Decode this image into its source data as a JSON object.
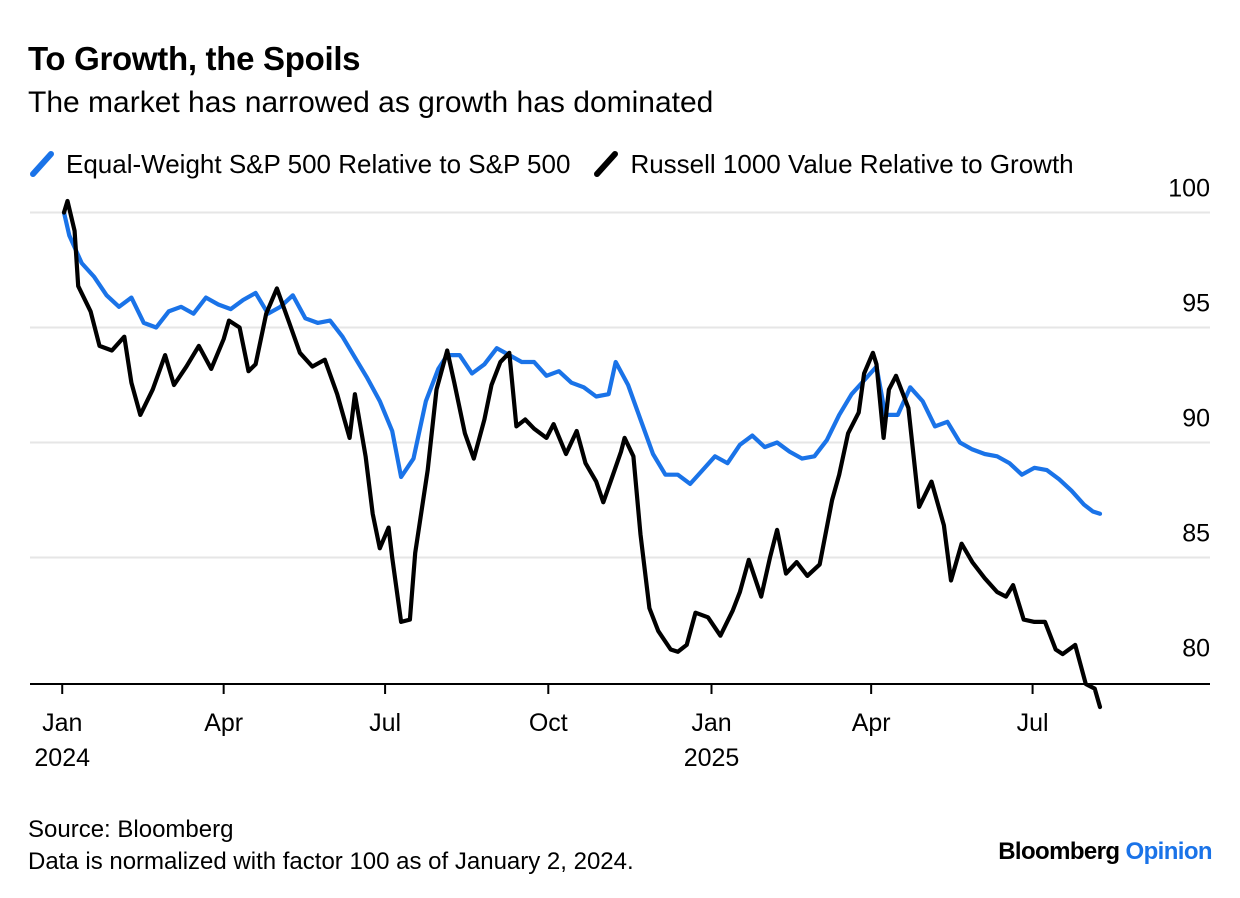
{
  "header": {
    "title": "To Growth, the Spoils",
    "subtitle": "The market has narrowed as growth has dominated"
  },
  "footer": {
    "source": "Source: Bloomberg",
    "note": "Data is normalized with factor 100 as of January 2, 2024.",
    "brand_primary": "Bloomberg",
    "brand_secondary": "Opinion"
  },
  "chart_data": {
    "type": "line",
    "title": "To Growth, the Spoils",
    "subtitle": "The market has narrowed as growth has dominated",
    "xlabel": "",
    "ylabel": "",
    "grid": true,
    "legend_position": "top-left",
    "x_range": [
      "2024-01-02",
      "2025-08-15"
    ],
    "y_range": [
      79.5,
      100.5
    ],
    "y_ticks": [
      80,
      85,
      90,
      95,
      100
    ],
    "y_tick_labels": [
      "80",
      "85",
      "90",
      "95",
      "100"
    ],
    "x_ticks": [
      {
        "date": "2024-01-01",
        "label": "Jan",
        "year": "2024"
      },
      {
        "date": "2024-04-01",
        "label": "Apr",
        "year": ""
      },
      {
        "date": "2024-07-01",
        "label": "Jul",
        "year": ""
      },
      {
        "date": "2024-10-01",
        "label": "Oct",
        "year": ""
      },
      {
        "date": "2025-01-01",
        "label": "Jan",
        "year": "2025"
      },
      {
        "date": "2025-04-01",
        "label": "Apr",
        "year": ""
      },
      {
        "date": "2025-07-01",
        "label": "Jul",
        "year": ""
      }
    ],
    "series": [
      {
        "name": "Equal-Weight S&P 500 Relative to S&P 500",
        "color": "#1a73e8",
        "points": [
          [
            "2024-01-02",
            100.0
          ],
          [
            "2024-01-05",
            99.0
          ],
          [
            "2024-01-12",
            97.8
          ],
          [
            "2024-01-19",
            97.2
          ],
          [
            "2024-01-26",
            96.4
          ],
          [
            "2024-02-02",
            95.9
          ],
          [
            "2024-02-09",
            96.3
          ],
          [
            "2024-02-16",
            95.2
          ],
          [
            "2024-02-23",
            95.0
          ],
          [
            "2024-03-01",
            95.7
          ],
          [
            "2024-03-08",
            95.9
          ],
          [
            "2024-03-15",
            95.6
          ],
          [
            "2024-03-22",
            96.3
          ],
          [
            "2024-03-29",
            96.0
          ],
          [
            "2024-04-05",
            95.8
          ],
          [
            "2024-04-12",
            96.2
          ],
          [
            "2024-04-19",
            96.5
          ],
          [
            "2024-04-26",
            95.6
          ],
          [
            "2024-05-03",
            95.9
          ],
          [
            "2024-05-10",
            96.4
          ],
          [
            "2024-05-17",
            95.4
          ],
          [
            "2024-05-24",
            95.2
          ],
          [
            "2024-05-31",
            95.3
          ],
          [
            "2024-06-07",
            94.6
          ],
          [
            "2024-06-14",
            93.7
          ],
          [
            "2024-06-21",
            92.8
          ],
          [
            "2024-06-28",
            91.8
          ],
          [
            "2024-07-05",
            90.5
          ],
          [
            "2024-07-10",
            88.5
          ],
          [
            "2024-07-17",
            89.3
          ],
          [
            "2024-07-24",
            91.8
          ],
          [
            "2024-07-31",
            93.2
          ],
          [
            "2024-08-05",
            93.8
          ],
          [
            "2024-08-12",
            93.8
          ],
          [
            "2024-08-19",
            93.0
          ],
          [
            "2024-08-26",
            93.4
          ],
          [
            "2024-09-02",
            94.1
          ],
          [
            "2024-09-09",
            93.8
          ],
          [
            "2024-09-16",
            93.5
          ],
          [
            "2024-09-23",
            93.5
          ],
          [
            "2024-09-30",
            92.9
          ],
          [
            "2024-10-07",
            93.1
          ],
          [
            "2024-10-14",
            92.6
          ],
          [
            "2024-10-21",
            92.4
          ],
          [
            "2024-10-28",
            92.0
          ],
          [
            "2024-11-04",
            92.1
          ],
          [
            "2024-11-08",
            93.5
          ],
          [
            "2024-11-15",
            92.5
          ],
          [
            "2024-11-22",
            91.0
          ],
          [
            "2024-11-29",
            89.5
          ],
          [
            "2024-12-06",
            88.6
          ],
          [
            "2024-12-13",
            88.6
          ],
          [
            "2024-12-20",
            88.2
          ],
          [
            "2024-12-27",
            88.8
          ],
          [
            "2025-01-03",
            89.4
          ],
          [
            "2025-01-10",
            89.1
          ],
          [
            "2025-01-17",
            89.9
          ],
          [
            "2025-01-24",
            90.3
          ],
          [
            "2025-01-31",
            89.8
          ],
          [
            "2025-02-07",
            90.0
          ],
          [
            "2025-02-14",
            89.6
          ],
          [
            "2025-02-21",
            89.3
          ],
          [
            "2025-02-28",
            89.4
          ],
          [
            "2025-03-07",
            90.1
          ],
          [
            "2025-03-14",
            91.2
          ],
          [
            "2025-03-21",
            92.1
          ],
          [
            "2025-03-28",
            92.7
          ],
          [
            "2025-04-04",
            93.3
          ],
          [
            "2025-04-09",
            91.2
          ],
          [
            "2025-04-16",
            91.2
          ],
          [
            "2025-04-23",
            92.4
          ],
          [
            "2025-04-30",
            91.8
          ],
          [
            "2025-05-07",
            90.7
          ],
          [
            "2025-05-14",
            90.9
          ],
          [
            "2025-05-21",
            90.0
          ],
          [
            "2025-05-28",
            89.7
          ],
          [
            "2025-06-04",
            89.5
          ],
          [
            "2025-06-11",
            89.4
          ],
          [
            "2025-06-18",
            89.1
          ],
          [
            "2025-06-25",
            88.6
          ],
          [
            "2025-07-02",
            88.9
          ],
          [
            "2025-07-09",
            88.8
          ],
          [
            "2025-07-16",
            88.4
          ],
          [
            "2025-07-23",
            87.9
          ],
          [
            "2025-07-30",
            87.3
          ],
          [
            "2025-08-04",
            87.0
          ],
          [
            "2025-08-08",
            86.9
          ]
        ]
      },
      {
        "name": "Russell 1000 Value Relative to Growth",
        "color": "#000000",
        "points": [
          [
            "2024-01-02",
            100.0
          ],
          [
            "2024-01-04",
            100.5
          ],
          [
            "2024-01-08",
            99.2
          ],
          [
            "2024-01-10",
            96.8
          ],
          [
            "2024-01-17",
            95.7
          ],
          [
            "2024-01-22",
            94.2
          ],
          [
            "2024-01-29",
            94.0
          ],
          [
            "2024-02-05",
            94.6
          ],
          [
            "2024-02-09",
            92.6
          ],
          [
            "2024-02-14",
            91.2
          ],
          [
            "2024-02-21",
            92.3
          ],
          [
            "2024-02-28",
            93.8
          ],
          [
            "2024-03-04",
            92.5
          ],
          [
            "2024-03-11",
            93.3
          ],
          [
            "2024-03-18",
            94.2
          ],
          [
            "2024-03-25",
            93.2
          ],
          [
            "2024-04-01",
            94.5
          ],
          [
            "2024-04-04",
            95.3
          ],
          [
            "2024-04-10",
            95.0
          ],
          [
            "2024-04-15",
            93.1
          ],
          [
            "2024-04-19",
            93.4
          ],
          [
            "2024-04-25",
            95.6
          ],
          [
            "2024-05-01",
            96.7
          ],
          [
            "2024-05-08",
            95.2
          ],
          [
            "2024-05-14",
            93.9
          ],
          [
            "2024-05-21",
            93.3
          ],
          [
            "2024-05-28",
            93.6
          ],
          [
            "2024-06-04",
            92.1
          ],
          [
            "2024-06-11",
            90.2
          ],
          [
            "2024-06-14",
            92.1
          ],
          [
            "2024-06-20",
            89.4
          ],
          [
            "2024-06-24",
            86.9
          ],
          [
            "2024-06-28",
            85.4
          ],
          [
            "2024-07-03",
            86.3
          ],
          [
            "2024-07-05",
            85.0
          ],
          [
            "2024-07-10",
            82.2
          ],
          [
            "2024-07-15",
            82.3
          ],
          [
            "2024-07-18",
            85.2
          ],
          [
            "2024-07-25",
            88.8
          ],
          [
            "2024-07-30",
            92.3
          ],
          [
            "2024-08-05",
            94.0
          ],
          [
            "2024-08-09",
            92.6
          ],
          [
            "2024-08-15",
            90.4
          ],
          [
            "2024-08-20",
            89.3
          ],
          [
            "2024-08-26",
            91.0
          ],
          [
            "2024-08-30",
            92.5
          ],
          [
            "2024-09-04",
            93.5
          ],
          [
            "2024-09-09",
            93.9
          ],
          [
            "2024-09-13",
            90.7
          ],
          [
            "2024-09-18",
            91.0
          ],
          [
            "2024-09-23",
            90.6
          ],
          [
            "2024-09-30",
            90.2
          ],
          [
            "2024-10-04",
            90.8
          ],
          [
            "2024-10-11",
            89.5
          ],
          [
            "2024-10-17",
            90.5
          ],
          [
            "2024-10-22",
            89.1
          ],
          [
            "2024-10-28",
            88.3
          ],
          [
            "2024-11-01",
            87.4
          ],
          [
            "2024-11-06",
            88.5
          ],
          [
            "2024-11-11",
            89.6
          ],
          [
            "2024-11-13",
            90.2
          ],
          [
            "2024-11-18",
            89.4
          ],
          [
            "2024-11-22",
            86.0
          ],
          [
            "2024-11-27",
            82.8
          ],
          [
            "2024-12-02",
            81.8
          ],
          [
            "2024-12-09",
            81.0
          ],
          [
            "2024-12-13",
            80.9
          ],
          [
            "2024-12-18",
            81.2
          ],
          [
            "2024-12-23",
            82.6
          ],
          [
            "2024-12-30",
            82.4
          ],
          [
            "2025-01-06",
            81.6
          ],
          [
            "2025-01-13",
            82.7
          ],
          [
            "2025-01-17",
            83.5
          ],
          [
            "2025-01-22",
            84.9
          ],
          [
            "2025-01-29",
            83.3
          ],
          [
            "2025-02-03",
            85.0
          ],
          [
            "2025-02-07",
            86.2
          ],
          [
            "2025-02-12",
            84.3
          ],
          [
            "2025-02-18",
            84.8
          ],
          [
            "2025-02-24",
            84.2
          ],
          [
            "2025-03-03",
            84.7
          ],
          [
            "2025-03-10",
            87.5
          ],
          [
            "2025-03-14",
            88.6
          ],
          [
            "2025-03-19",
            90.4
          ],
          [
            "2025-03-25",
            91.3
          ],
          [
            "2025-03-28",
            93.0
          ],
          [
            "2025-04-02",
            93.9
          ],
          [
            "2025-04-04",
            93.4
          ],
          [
            "2025-04-08",
            90.2
          ],
          [
            "2025-04-11",
            92.3
          ],
          [
            "2025-04-15",
            92.9
          ],
          [
            "2025-04-22",
            91.5
          ],
          [
            "2025-04-28",
            87.2
          ],
          [
            "2025-05-05",
            88.3
          ],
          [
            "2025-05-12",
            86.4
          ],
          [
            "2025-05-16",
            84.0
          ],
          [
            "2025-05-22",
            85.6
          ],
          [
            "2025-05-28",
            84.8
          ],
          [
            "2025-06-04",
            84.1
          ],
          [
            "2025-06-11",
            83.5
          ],
          [
            "2025-06-16",
            83.3
          ],
          [
            "2025-06-20",
            83.8
          ],
          [
            "2025-06-26",
            82.3
          ],
          [
            "2025-07-02",
            82.2
          ],
          [
            "2025-07-08",
            82.2
          ],
          [
            "2025-07-14",
            81.0
          ],
          [
            "2025-07-18",
            80.8
          ],
          [
            "2025-07-25",
            81.2
          ],
          [
            "2025-07-31",
            79.5
          ],
          [
            "2025-08-05",
            79.3
          ],
          [
            "2025-08-08",
            78.5
          ]
        ]
      }
    ]
  }
}
